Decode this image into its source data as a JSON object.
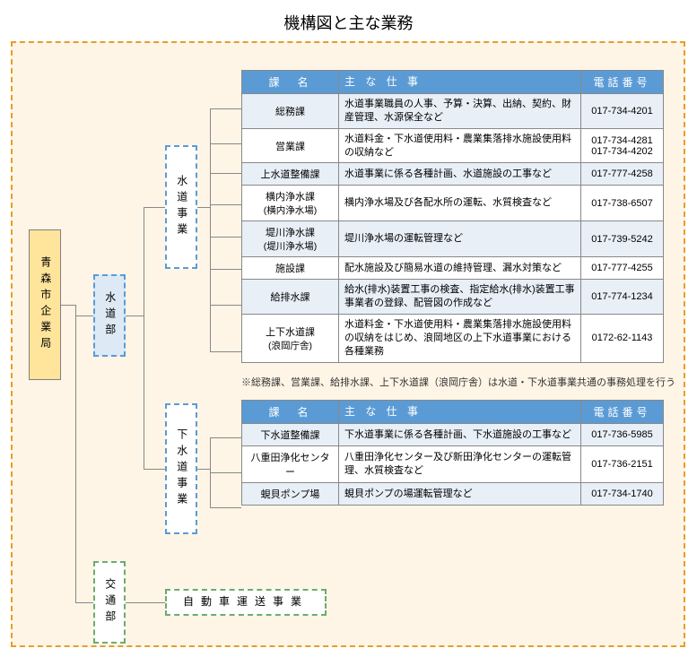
{
  "title": "機構図と主な業務",
  "root": {
    "label": "青森市企業局"
  },
  "dept1": {
    "label": "水道部"
  },
  "biz1": {
    "label": "水道事業"
  },
  "biz2": {
    "label": "下水道事業"
  },
  "dept2": {
    "label": "交通部"
  },
  "transport": {
    "label": "自動車運送事業"
  },
  "table1": {
    "headers": {
      "h1": "課　名",
      "h2": "主 な 仕 事",
      "h3": "電話番号"
    },
    "rows": [
      {
        "dept": "総務課",
        "sub": "",
        "work": "水道事業職員の人事、予算・決算、出納、契約、財産管理、水源保全など",
        "phone": "017-734-4201"
      },
      {
        "dept": "営業課",
        "sub": "",
        "work": "水道料金・下水道使用料・農業集落排水施設使用料の収納など",
        "phone": "017-734-4281\n017-734-4202"
      },
      {
        "dept": "上水道整備課",
        "sub": "",
        "work": "水道事業に係る各種計画、水道施設の工事など",
        "phone": "017-777-4258"
      },
      {
        "dept": "横内浄水課",
        "sub": "(横内浄水場)",
        "work": "横内浄水場及び各配水所の運転、水質検査など",
        "phone": "017-738-6507"
      },
      {
        "dept": "堤川浄水課",
        "sub": "(堤川浄水場)",
        "work": "堤川浄水場の運転管理など",
        "phone": "017-739-5242"
      },
      {
        "dept": "施設課",
        "sub": "",
        "work": "配水施設及び簡易水道の維持管理、漏水対策など",
        "phone": "017-777-4255"
      },
      {
        "dept": "給排水課",
        "sub": "",
        "work": "給水(排水)装置工事の検査、指定給水(排水)装置工事事業者の登録、配管図の作成など",
        "phone": "017-774-1234"
      },
      {
        "dept": "上下水道課",
        "sub": "(浪岡庁舎)",
        "work": "水道料金・下水道使用料・農業集落排水施設使用料の収納をはじめ、浪岡地区の上下水道事業における各種業務",
        "phone": "0172-62-1143"
      }
    ]
  },
  "note1": "※総務課、営業課、給排水課、上下水道課（浪岡庁舎）は水道・下水道事業共通の事務処理を行う",
  "table2": {
    "headers": {
      "h1": "課　名",
      "h2": "主 な 仕 事",
      "h3": "電話番号"
    },
    "rows": [
      {
        "dept": "下水道整備課",
        "work": "下水道事業に係る各種計画、下水道施設の工事など",
        "phone": "017-736-5985"
      },
      {
        "dept": "八重田浄化センター",
        "work": "八重田浄化センター及び新田浄化センターの運転管理、水質検査など",
        "phone": "017-736-2151"
      },
      {
        "dept": "蜆貝ポンプ場",
        "work": "蜆貝ポンプの場運転管理など",
        "phone": "017-734-1740"
      }
    ]
  },
  "colors": {
    "container_bg": "#fff5e6",
    "container_border": "#e69e28",
    "root_bg": "#ffe59b",
    "dept_bg": "#dde9f5",
    "blue_border": "#5b9bd5",
    "green_border": "#6dab6d",
    "th_bg": "#5b9bd5",
    "row_alt": "#e8eff7"
  }
}
